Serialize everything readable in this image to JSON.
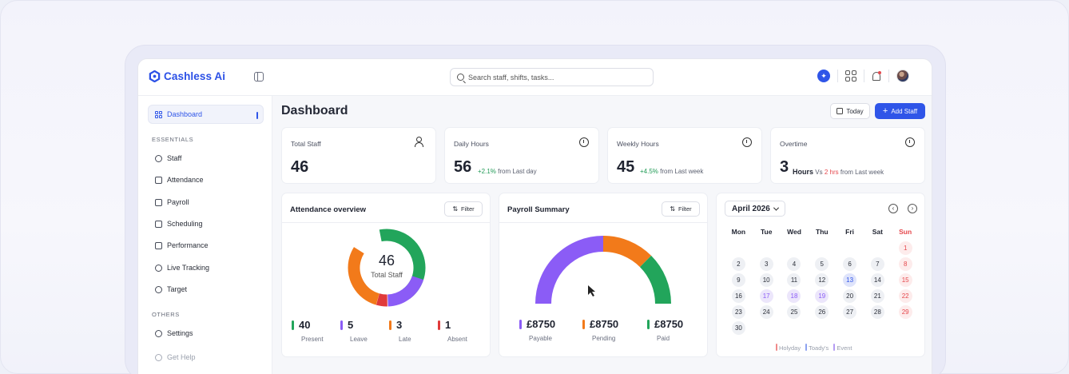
{
  "app": {
    "logo_text": "Cashless Ai"
  },
  "search": {
    "placeholder": "Search staff, shifts, tasks..."
  },
  "sidebar": {
    "active": {
      "label": "Dashboard"
    },
    "section_essentials": "ESSENTIALS",
    "essentials": [
      {
        "label": "Staff",
        "icon": "users-icon"
      },
      {
        "label": "Attendance",
        "icon": "calendar-check-icon"
      },
      {
        "label": "Payroll",
        "icon": "wallet-icon"
      },
      {
        "label": "Scheduling",
        "icon": "calendar-icon"
      },
      {
        "label": "Performance",
        "icon": "chart-icon"
      },
      {
        "label": "Live Tracking",
        "icon": "location-icon"
      },
      {
        "label": "Target",
        "icon": "target-icon"
      }
    ],
    "section_others": "OTHERS",
    "others": [
      {
        "label": "Settings",
        "icon": "gear-icon"
      },
      {
        "label": "Get Help",
        "icon": "help-icon"
      }
    ]
  },
  "header": {
    "title": "Dashboard",
    "today_label": "Today",
    "add_label": "Add Staff"
  },
  "stats": {
    "total_staff": {
      "label": "Total Staff",
      "value": "46"
    },
    "daily_hours": {
      "label": "Daily Hours",
      "value": "56",
      "change": "+2.1%",
      "suffix": "from Last day"
    },
    "weekly_hours": {
      "label": "Weekly Hours",
      "value": "45",
      "change": "+4.5%",
      "suffix": "from Last week"
    },
    "overtime": {
      "label": "Overtime",
      "value": "3",
      "unit": "Hours",
      "vs": "Vs",
      "prev": "2 hrs",
      "suffix": "from Last week"
    }
  },
  "attendance": {
    "title": "Attendance overview",
    "filter_label": "Filter",
    "center_value": "46",
    "center_label": "Total Staff",
    "items": [
      {
        "label": "Present",
        "value": "40",
        "color": "#22a55b"
      },
      {
        "label": "Leave",
        "value": "5",
        "color": "#8b5cf6"
      },
      {
        "label": "Late",
        "value": "3",
        "color": "#f27a1a"
      },
      {
        "label": "Absent",
        "value": "1",
        "color": "#e03a3a"
      }
    ]
  },
  "payroll": {
    "title": "Payroll Summary",
    "filter_label": "Filter",
    "items": [
      {
        "label": "Payable",
        "value": "£8750",
        "color": "#8b5cf6"
      },
      {
        "label": "Pending",
        "value": "£8750",
        "color": "#f27a1a"
      },
      {
        "label": "Paid",
        "value": "£8750",
        "color": "#22a55b"
      }
    ]
  },
  "calendar": {
    "month_label": "April 2026",
    "weekdays": [
      "Mon",
      "Tue",
      "Wed",
      "Thu",
      "Fri",
      "Sat",
      "Sun"
    ],
    "legend": [
      {
        "label": "Holyday",
        "color": "#f08a8a"
      },
      {
        "label": "Toady's",
        "color": "#8da2f0"
      },
      {
        "label": "Event",
        "color": "#b59cf3"
      }
    ]
  }
}
